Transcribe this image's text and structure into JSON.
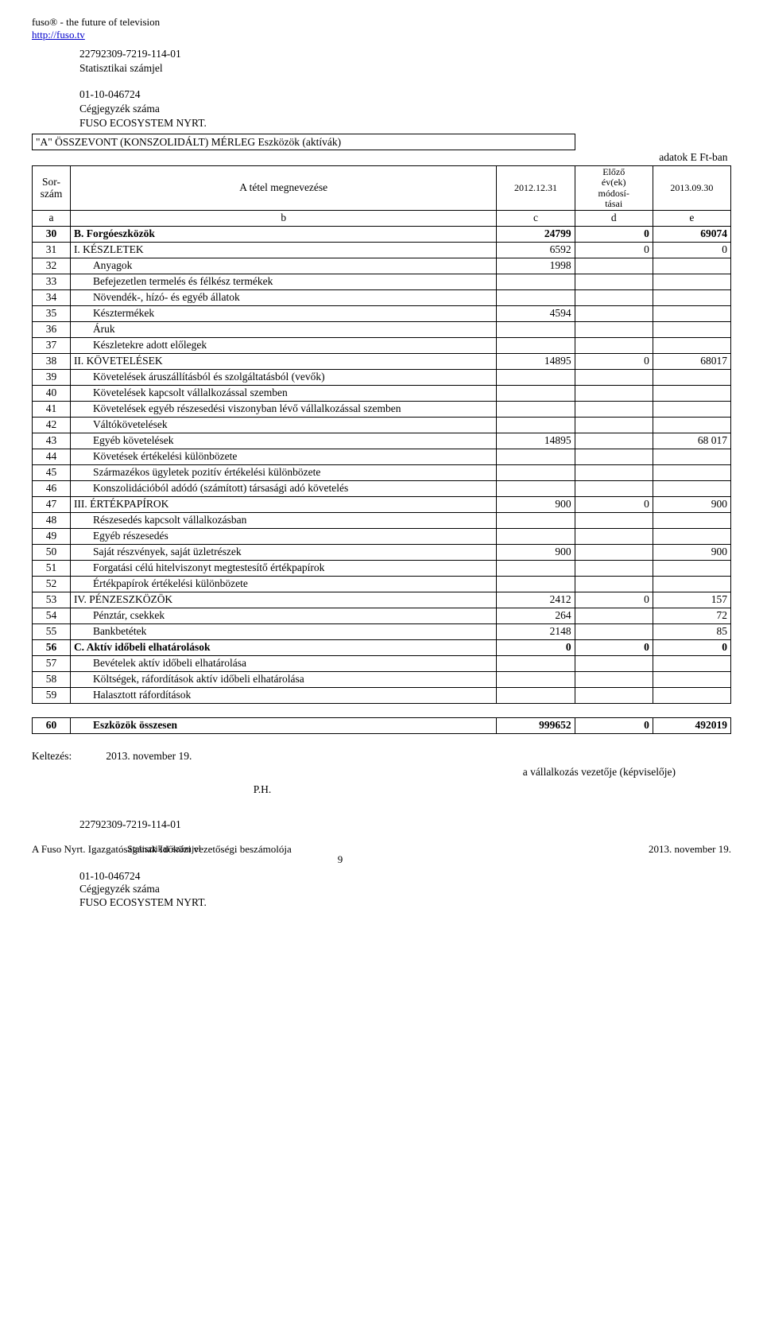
{
  "page_header": {
    "line1": "fuso® - the future of television",
    "line2": "http://fuso.tv"
  },
  "pre_table": {
    "stat_num": "22792309-7219-114-01",
    "stat_label": "Statisztikai számjel",
    "reg_num": "01-10-046724",
    "reg_label": "Cégjegyzék száma",
    "company": "FUSO ECOSYSTEM NYRT."
  },
  "table_title": "\"A\" ÖSSZEVONT (KONSZOLIDÁLT) MÉRLEG Eszközök (aktívák)",
  "units": "adatok E Ft-ban",
  "col_headers": {
    "sor": "Sor-\nszám",
    "megnev": "A tétel megnevezése",
    "date": "2012.12.31",
    "prev": "Előző év(ek) módosí-tásai",
    "date2": "2013.09.30",
    "a": "a",
    "b": "b",
    "c": "c",
    "d": "d",
    "e": "e"
  },
  "rows": [
    {
      "n": "30",
      "lbl": "B.  Forgóeszközök",
      "c": "24799",
      "d": "0",
      "e": "69074",
      "bold": true
    },
    {
      "n": "31",
      "lbl": "I.   KÉSZLETEK",
      "c": "6592",
      "d": "0",
      "e": "0"
    },
    {
      "n": "32",
      "lbl": "Anyagok",
      "c": "1998",
      "d": "",
      "e": "",
      "indent": true
    },
    {
      "n": "33",
      "lbl": "Befejezetlen termelés és félkész termékek",
      "c": "",
      "d": "",
      "e": "",
      "indent": true
    },
    {
      "n": "34",
      "lbl": "Növendék-, hízó- és egyéb állatok",
      "c": "",
      "d": "",
      "e": "",
      "indent": true
    },
    {
      "n": "35",
      "lbl": "Késztermékek",
      "c": "4594",
      "d": "",
      "e": "",
      "indent": true
    },
    {
      "n": "36",
      "lbl": "Áruk",
      "c": "",
      "d": "",
      "e": "",
      "indent": true
    },
    {
      "n": "37",
      "lbl": "Készletekre adott előlegek",
      "c": "",
      "d": "",
      "e": "",
      "indent": true
    },
    {
      "n": "38",
      "lbl": "II.  KÖVETELÉSEK",
      "c": "14895",
      "d": "0",
      "e": "68017"
    },
    {
      "n": "39",
      "lbl": "Követelések áruszállításból és szolgáltatásból (vevők)",
      "c": "",
      "d": "",
      "e": "",
      "indent": true
    },
    {
      "n": "40",
      "lbl": "Követelések kapcsolt vállalkozással szemben",
      "c": "",
      "d": "",
      "e": "",
      "indent": true
    },
    {
      "n": "41",
      "lbl": "Követelések egyéb részesedési viszonyban lévő vállalkozással szemben",
      "c": "",
      "d": "",
      "e": "",
      "indent": true
    },
    {
      "n": "42",
      "lbl": "Váltókövetelések",
      "c": "",
      "d": "",
      "e": "",
      "indent": true
    },
    {
      "n": "43",
      "lbl": "Egyéb követelések",
      "c": "14895",
      "d": "",
      "e": "68 017",
      "indent": true
    },
    {
      "n": "44",
      "lbl": "Követések értékelési különbözete",
      "c": "",
      "d": "",
      "e": "",
      "indent": true
    },
    {
      "n": "45",
      "lbl": "Származékos ügyletek pozitív értékelési különbözete",
      "c": "",
      "d": "",
      "e": "",
      "indent": true
    },
    {
      "n": "46",
      "lbl": "Konszolidációból adódó (számított) társasági adó követelés",
      "c": "",
      "d": "",
      "e": "",
      "indent": true
    },
    {
      "n": "47",
      "lbl": "III. ÉRTÉKPAPÍROK",
      "c": "900",
      "d": "0",
      "e": "900"
    },
    {
      "n": "48",
      "lbl": "Részesedés kapcsolt vállalkozásban",
      "c": "",
      "d": "",
      "e": "",
      "indent": true
    },
    {
      "n": "49",
      "lbl": "Egyéb részesedés",
      "c": "",
      "d": "",
      "e": "",
      "indent": true
    },
    {
      "n": "50",
      "lbl": "Saját részvények, saját üzletrészek",
      "c": "900",
      "d": "",
      "e": "900",
      "indent": true
    },
    {
      "n": "51",
      "lbl": "Forgatási célú hitelviszonyt megtestesítő értékpapírok",
      "c": "",
      "d": "",
      "e": "",
      "indent": true
    },
    {
      "n": "52",
      "lbl": "Értékpapírok értékelési különbözete",
      "c": "",
      "d": "",
      "e": "",
      "indent": true
    },
    {
      "n": "53",
      "lbl": "IV. PÉNZESZKÖZÖK",
      "c": "2412",
      "d": "0",
      "e": "157"
    },
    {
      "n": "54",
      "lbl": "Pénztár, csekkek",
      "c": "264",
      "d": "",
      "e": "72",
      "indent": true
    },
    {
      "n": "55",
      "lbl": "Bankbetétek",
      "c": "2148",
      "d": "",
      "e": "85",
      "indent": true
    },
    {
      "n": "56",
      "lbl": "C.  Aktív időbeli elhatárolások",
      "c": "0",
      "d": "0",
      "e": "0",
      "bold": true
    },
    {
      "n": "57",
      "lbl": "Bevételek aktív időbeli elhatárolása",
      "c": "",
      "d": "",
      "e": "",
      "indent": true
    },
    {
      "n": "58",
      "lbl": "Költségek, ráfordítások aktív  időbeli  elhatárolása",
      "c": "",
      "d": "",
      "e": "",
      "indent": true
    },
    {
      "n": "59",
      "lbl": "Halasztott ráfordítások",
      "c": "",
      "d": "",
      "e": "",
      "indent": true
    }
  ],
  "total_row": {
    "n": "60",
    "lbl": "Eszközök összesen",
    "c": "999652",
    "d": "0",
    "e": "492019"
  },
  "signature": {
    "kelt_label": "Keltezés:",
    "kelt_date": "2013. november 19.",
    "right": "a vállalkozás vezetője (képviselője)",
    "ph": "P.H."
  },
  "footer_block": {
    "stat_num": "22792309-7219-114-01",
    "overlay_left": "A Fuso Nyrt. Igazgatóságának Időközi vezetőségi beszámolója",
    "overlay_mid": "Statisztikai számjel",
    "overlay_right": "2013. november 19.",
    "page_num": "9",
    "reg_num": "01-10-046724",
    "reg_label": "Cégjegyzék száma",
    "company": "FUSO ECOSYSTEM NYRT."
  }
}
